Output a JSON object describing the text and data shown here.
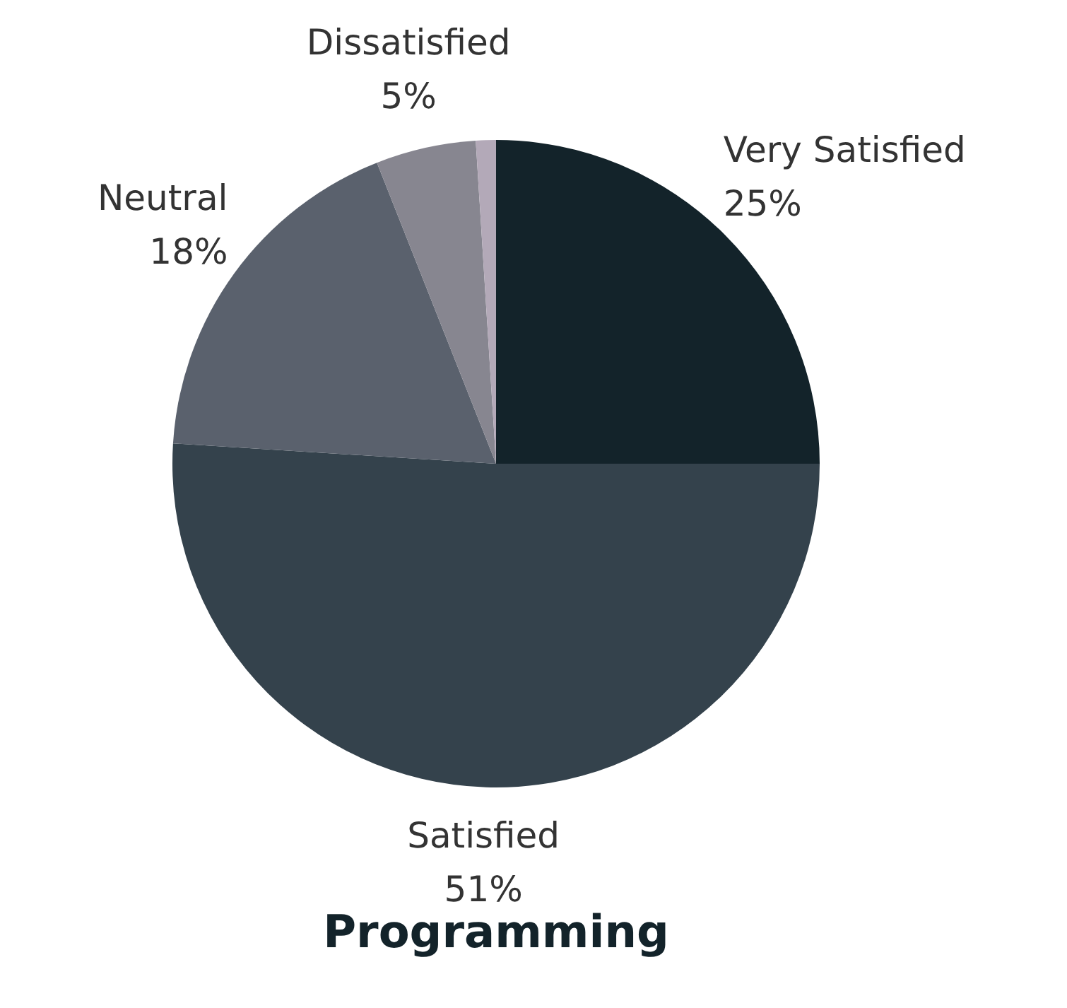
{
  "chart_data": {
    "type": "pie",
    "title": "Programming",
    "categories": [
      "Very Satisfied",
      "Satisfied",
      "Neutral",
      "Dissatisfied",
      null
    ],
    "values": [
      25,
      51,
      18,
      5,
      1
    ],
    "value_labels": [
      "25%",
      "51%",
      "18%",
      "5%",
      null
    ],
    "colors": [
      "#13232a",
      "#34424c",
      "#5a616d",
      "#878690",
      "#b3a9b8"
    ],
    "legend": false
  }
}
